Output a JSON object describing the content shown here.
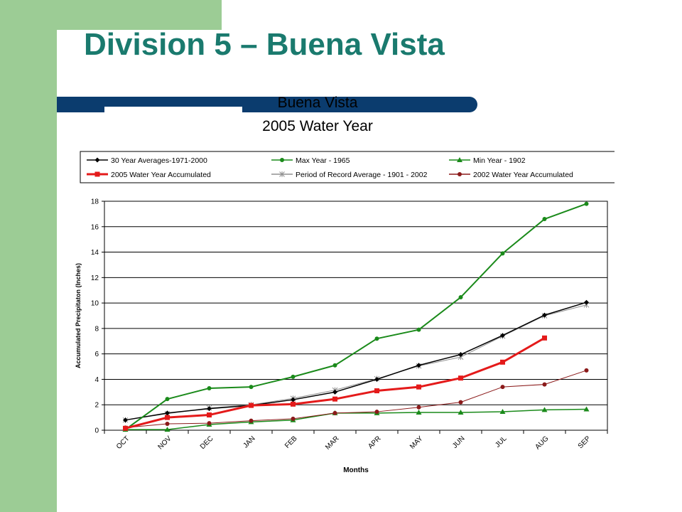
{
  "slide": {
    "title": "Division 5 – Buena Vista"
  },
  "chart_data": {
    "type": "line",
    "title": "Buena Vista",
    "subtitle": "2005 Water Year",
    "xlabel": "Months",
    "ylabel": "Accumulated Precipitaton (Inches)",
    "categories": [
      "OCT",
      "NOV",
      "DEC",
      "JAN",
      "FEB",
      "MAR",
      "APR",
      "MAY",
      "JUN",
      "JUL",
      "AUG",
      "SEP"
    ],
    "ylim": [
      0,
      18
    ],
    "yticks": [
      0,
      2,
      4,
      6,
      8,
      10,
      12,
      14,
      16,
      18
    ],
    "grid": "horizontal",
    "legend_position": "top",
    "series": [
      {
        "name": "30 Year Averages-1971-2000",
        "color": "#000000",
        "marker": "diamond",
        "values": [
          0.8,
          1.35,
          1.7,
          1.95,
          2.4,
          3.0,
          4.0,
          5.1,
          5.95,
          7.45,
          9.05,
          10.05
        ]
      },
      {
        "name": "Max Year - 1965",
        "color": "#1a8a1a",
        "marker": "circle",
        "values": [
          0.05,
          2.45,
          3.3,
          3.4,
          4.2,
          5.1,
          7.2,
          7.9,
          10.45,
          13.9,
          16.6,
          17.8
        ]
      },
      {
        "name": "Min Year - 1902",
        "color": "#1a8a1a",
        "marker": "triangle",
        "values": [
          0.05,
          0.05,
          0.45,
          0.65,
          0.8,
          1.35,
          1.35,
          1.4,
          1.4,
          1.45,
          1.6,
          1.65
        ]
      },
      {
        "name": "2005 Water Year Accumulated",
        "color": "#e41a1a",
        "marker": "square",
        "values": [
          0.15,
          1.0,
          1.2,
          1.95,
          2.05,
          2.45,
          3.1,
          3.4,
          4.1,
          5.35,
          7.25,
          null
        ]
      },
      {
        "name": "Period of Record Average - 1901 - 2002",
        "color": "#909090",
        "marker": "star",
        "values": [
          0.8,
          1.3,
          1.75,
          2.0,
          2.5,
          3.15,
          4.05,
          5.05,
          5.75,
          7.4,
          9.0,
          9.85
        ]
      },
      {
        "name": "2002 Water Year Accumulated",
        "color": "#8b1a1a",
        "marker": "circle",
        "values": [
          0.2,
          0.5,
          0.55,
          0.75,
          0.9,
          1.35,
          1.45,
          1.8,
          2.2,
          3.4,
          3.6,
          4.7
        ]
      }
    ]
  }
}
